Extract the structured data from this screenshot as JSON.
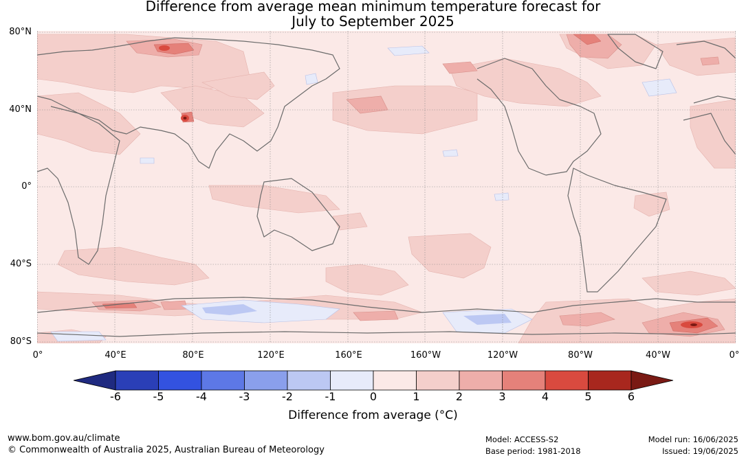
{
  "title": {
    "line1": "Difference from average mean minimum temperature forecast for",
    "line2": "July to September 2025"
  },
  "map": {
    "lat_labels": [
      "80°N",
      "40°N",
      "0°",
      "40°S",
      "80°S"
    ],
    "lon_labels": [
      "0°",
      "40°E",
      "80°E",
      "120°E",
      "160°E",
      "160°W",
      "120°W",
      "80°W",
      "40°W",
      "0°"
    ],
    "background_color": "#fbe9e7",
    "coast_color": "#6b6b6b"
  },
  "colorbar": {
    "ticks": [
      "-6",
      "-5",
      "-4",
      "-3",
      "-2",
      "-1",
      "0",
      "1",
      "2",
      "3",
      "4",
      "5",
      "6"
    ],
    "colors": [
      "#1f2a80",
      "#2a3fb7",
      "#3352e0",
      "#5d78e6",
      "#8a9fec",
      "#bcc8f3",
      "#e7ebfa",
      "#fbe9e7",
      "#f4cfcb",
      "#eeaeaa",
      "#e5817a",
      "#d94a3f",
      "#a8271e",
      "#7a1a14"
    ],
    "label": "Difference from average (°C)"
  },
  "footer": {
    "url": "www.bom.gov.au/climate",
    "copyright": "© Commonwealth of Australia 2025, Australian Bureau of Meteorology",
    "model": "Model: ACCESS-S2",
    "base_period": "Base period: 1981-2018",
    "model_run": "Model run: 16/06/2025",
    "issued": "Issued: 19/06/2025"
  }
}
